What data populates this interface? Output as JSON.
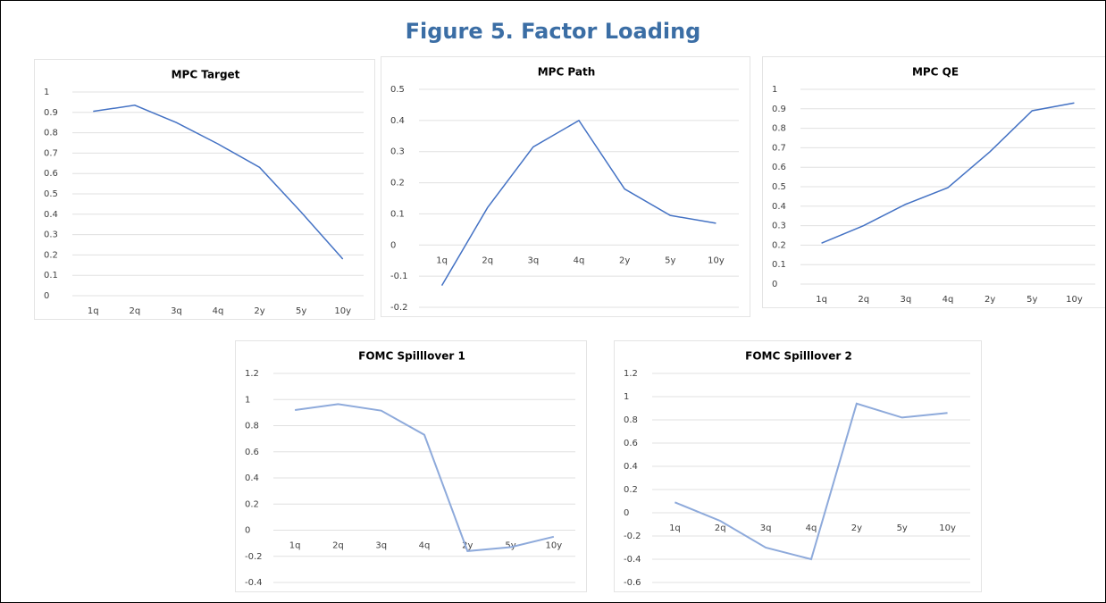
{
  "header": {
    "title": "Figure 5. Factor Loading"
  },
  "chart_data": [
    {
      "type": "line",
      "title": "MPC Target",
      "categories": [
        "1q",
        "2q",
        "3q",
        "4q",
        "2y",
        "5y",
        "10y"
      ],
      "values": [
        0.905,
        0.935,
        0.85,
        0.745,
        0.63,
        0.41,
        0.18
      ],
      "color": "#4472c4",
      "ylim": [
        0,
        1
      ],
      "yticks": [
        0,
        0.1,
        0.2,
        0.3,
        0.4,
        0.5,
        0.6,
        0.7,
        0.8,
        0.9,
        1
      ],
      "grid": true
    },
    {
      "type": "line",
      "title": "MPC Path",
      "categories": [
        "1q",
        "2q",
        "3q",
        "4q",
        "2y",
        "5y",
        "10y"
      ],
      "values": [
        -0.13,
        0.12,
        0.315,
        0.4,
        0.18,
        0.095,
        0.07
      ],
      "color": "#4472c4",
      "ylim": [
        -0.2,
        0.5
      ],
      "yticks": [
        -0.2,
        -0.1,
        0,
        0.1,
        0.2,
        0.3,
        0.4,
        0.5
      ],
      "grid": true
    },
    {
      "type": "line",
      "title": "MPC QE",
      "categories": [
        "1q",
        "2q",
        "3q",
        "4q",
        "2y",
        "5y",
        "10y"
      ],
      "values": [
        0.21,
        0.3,
        0.41,
        0.495,
        0.68,
        0.89,
        0.93
      ],
      "color": "#4472c4",
      "ylim": [
        0,
        1
      ],
      "yticks": [
        0,
        0.1,
        0.2,
        0.3,
        0.4,
        0.5,
        0.6,
        0.7,
        0.8,
        0.9,
        1
      ],
      "grid": true
    },
    {
      "type": "line",
      "title": "FOMC Spilllover 1",
      "categories": [
        "1q",
        "2q",
        "3q",
        "4q",
        "2y",
        "5y",
        "10y"
      ],
      "values": [
        0.92,
        0.965,
        0.915,
        0.73,
        -0.16,
        -0.13,
        -0.05
      ],
      "color": "#8eaadb",
      "ylim": [
        -0.4,
        1.2
      ],
      "yticks": [
        -0.4,
        -0.2,
        0,
        0.2,
        0.4,
        0.6,
        0.8,
        1,
        1.2
      ],
      "grid": true
    },
    {
      "type": "line",
      "title": "FOMC Spilllover 2",
      "categories": [
        "1q",
        "2q",
        "3q",
        "4q",
        "2y",
        "5y",
        "10y"
      ],
      "values": [
        0.09,
        -0.07,
        -0.3,
        -0.4,
        0.94,
        0.82,
        0.86
      ],
      "color": "#8eaadb",
      "ylim": [
        -0.6,
        1.2
      ],
      "yticks": [
        -0.6,
        -0.4,
        -0.2,
        0,
        0.2,
        0.4,
        0.6,
        0.8,
        1,
        1.2
      ],
      "grid": true
    }
  ]
}
